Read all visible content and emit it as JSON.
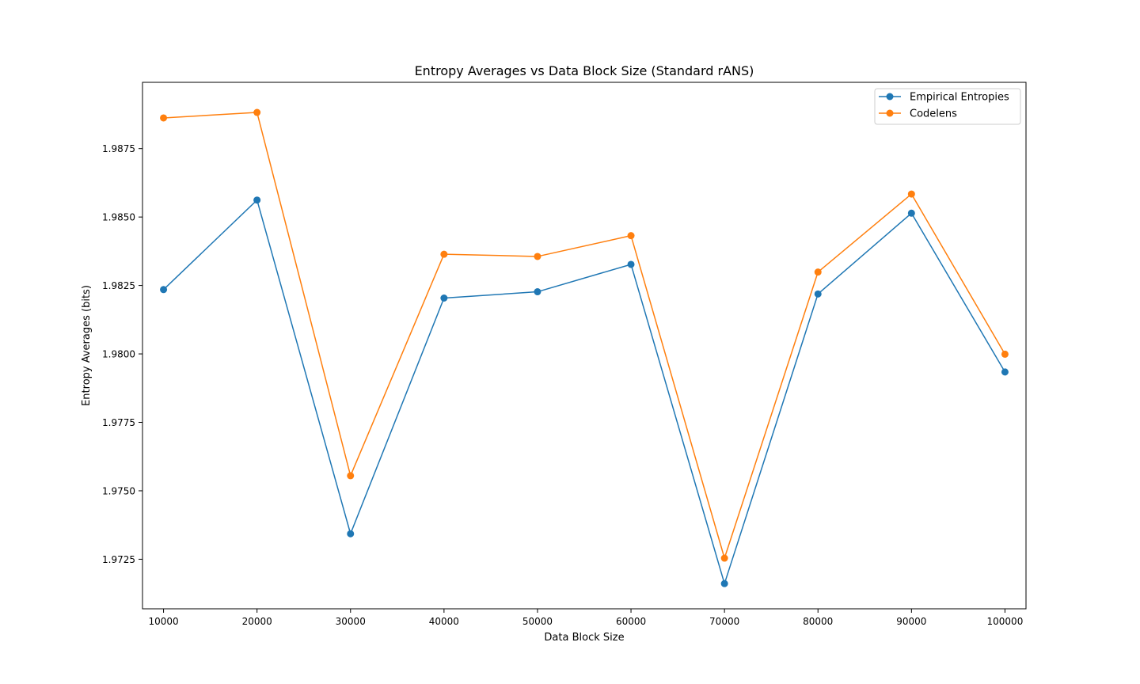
{
  "chart_data": {
    "type": "line",
    "title": "Entropy Averages vs Data Block Size (Standard rANS)",
    "xlabel": "Data Block Size",
    "ylabel": "Entropy Averages (bits)",
    "x": [
      10000,
      20000,
      30000,
      40000,
      50000,
      60000,
      70000,
      80000,
      90000,
      100000
    ],
    "x_ticks": [
      "10000",
      "20000",
      "30000",
      "40000",
      "50000",
      "60000",
      "70000",
      "80000",
      "90000",
      "100000"
    ],
    "y_ticks": [
      "1.9725",
      "1.9750",
      "1.9775",
      "1.9800",
      "1.9825",
      "1.9850",
      "1.9875"
    ],
    "y_tick_values": [
      1.9725,
      1.975,
      1.9775,
      1.98,
      1.9825,
      1.985,
      1.9875
    ],
    "xlim": [
      7750,
      102250
    ],
    "ylim": [
      1.97069,
      1.98992
    ],
    "grid": false,
    "legend_position": "top-right",
    "marker": "circle",
    "series": [
      {
        "name": "Empirical Entropies",
        "color": "#1f77b4",
        "values": [
          1.98235,
          1.98562,
          1.97343,
          1.98204,
          1.98227,
          1.98327,
          1.97161,
          1.98219,
          1.98514,
          1.97934
        ]
      },
      {
        "name": "Codelens",
        "color": "#ff7f0e",
        "values": [
          1.98862,
          1.98882,
          1.97555,
          1.98364,
          1.98356,
          1.98432,
          1.97254,
          1.98299,
          1.98584,
          1.97999
        ]
      }
    ]
  }
}
